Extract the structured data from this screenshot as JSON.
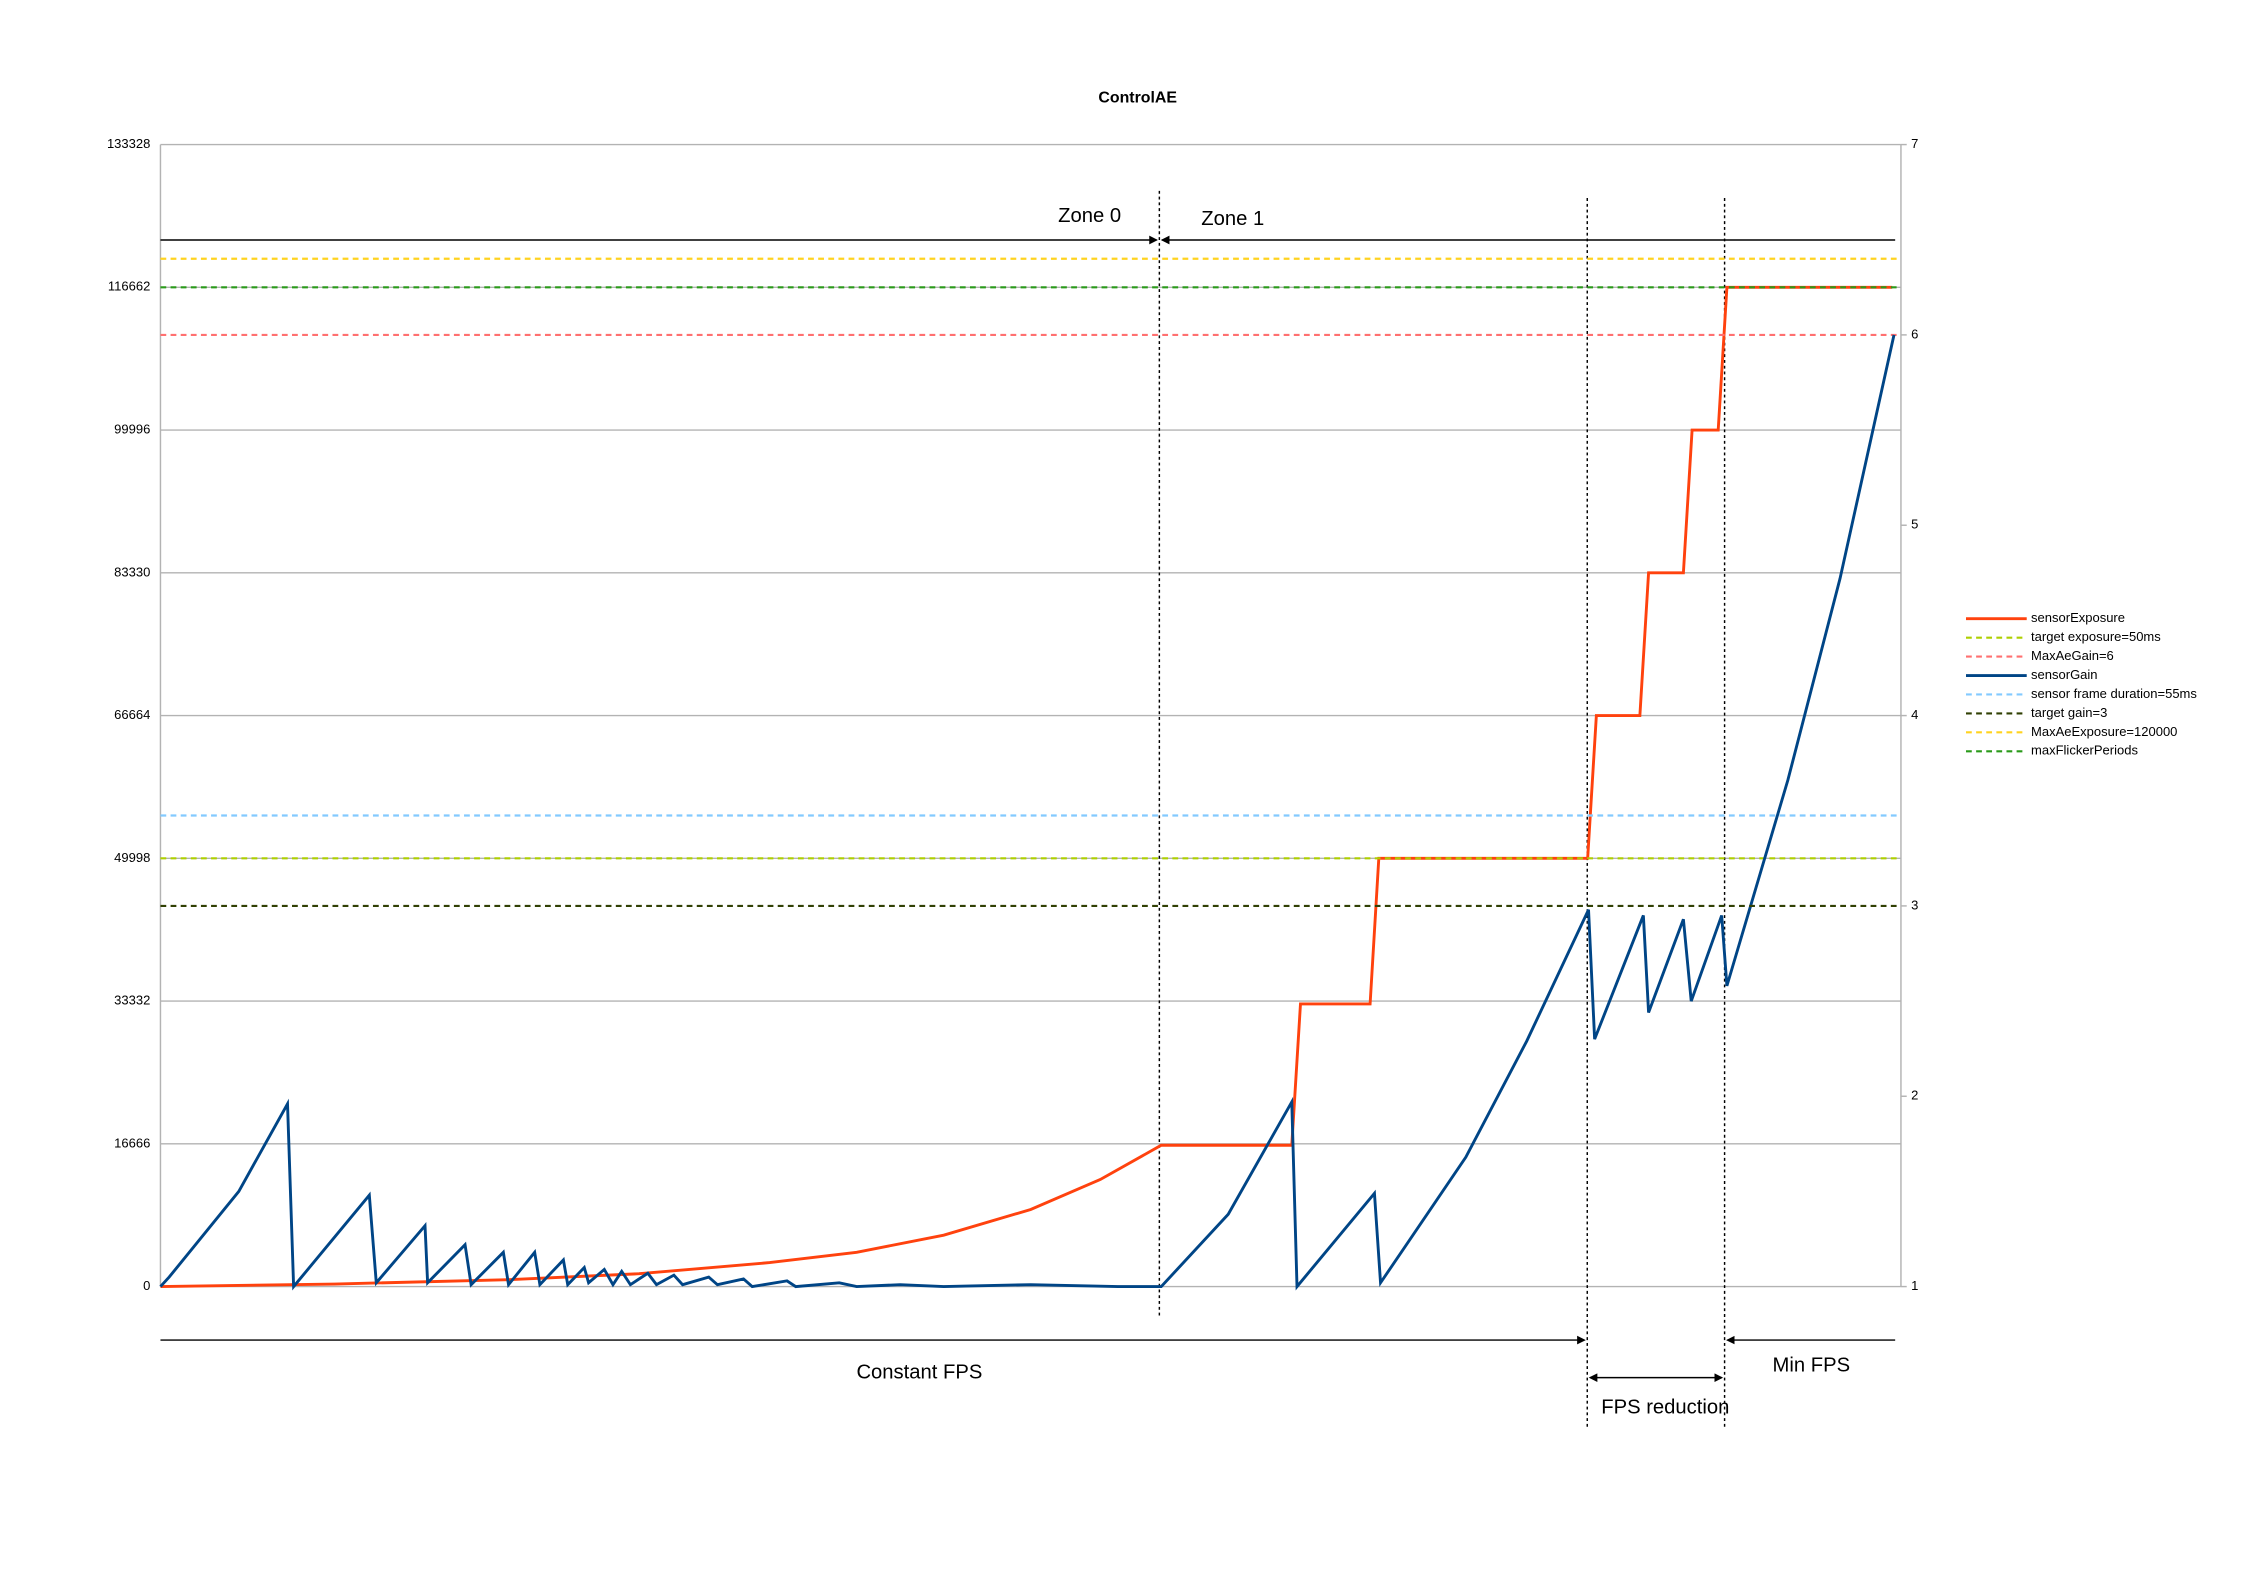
{
  "chart_data": {
    "type": "line",
    "title": "ControlAE",
    "xlim": [
      0,
      200
    ],
    "ylim": [
      0,
      133328
    ],
    "yticks": [
      0,
      16666,
      33332,
      49998,
      66664,
      83330,
      99996,
      116662,
      133328
    ],
    "y2lim": [
      1,
      7
    ],
    "y2ticks": [
      1,
      2,
      3,
      4,
      5,
      6,
      7
    ],
    "grid": true,
    "legend": "right",
    "series": [
      {
        "name": "sensorExposure",
        "color": "#ff420e",
        "x": [
          0,
          20,
          40,
          55,
          70,
          80,
          90,
          100,
          108,
          115,
          130,
          131,
          139,
          140,
          164,
          165,
          170,
          171,
          175,
          176,
          179,
          180,
          199
        ],
        "values": [
          0,
          300,
          800,
          1500,
          2800,
          4000,
          6000,
          9000,
          12500,
          16500,
          16500,
          33000,
          33000,
          50000,
          50000,
          66664,
          66664,
          83330,
          83330,
          99996,
          99996,
          116662,
          116662
        ]
      },
      {
        "name": "target exposure=50ms",
        "color": "#aecf00",
        "value": 49998
      },
      {
        "name": "MaxAeGain=6",
        "color": "#ff7070",
        "value": 6,
        "axis": "y2"
      },
      {
        "name": "sensorGain",
        "color": "#004586",
        "axis": "y2",
        "x": [
          0,
          1,
          9,
          14.6,
          15.3,
          24,
          24.8,
          30.4,
          30.7,
          35,
          35.7,
          39.4,
          40,
          43,
          43.6,
          46.3,
          46.8,
          48.7,
          49.2,
          51,
          52,
          53,
          54,
          56,
          57,
          59,
          60,
          63,
          64,
          67,
          68,
          72,
          73,
          78,
          80,
          85,
          90,
          100,
          110,
          115,
          122.7,
          130,
          130.6,
          139.5,
          140.2,
          150,
          157,
          164.1,
          164.8,
          170.4,
          171,
          175,
          175.9,
          179.4,
          180,
          187,
          193,
          199.2
        ],
        "values": [
          1,
          1.05,
          1.5,
          1.96,
          1,
          1.48,
          1.02,
          1.32,
          1.02,
          1.22,
          1.01,
          1.18,
          1.01,
          1.18,
          1.01,
          1.14,
          1.01,
          1.1,
          1.02,
          1.09,
          1.01,
          1.08,
          1.01,
          1.07,
          1.01,
          1.06,
          1.01,
          1.05,
          1.01,
          1.04,
          1,
          1.03,
          1,
          1.02,
          1,
          1.01,
          1,
          1.01,
          1,
          1,
          1.38,
          1.97,
          1,
          1.49,
          1.02,
          1.68,
          2.29,
          2.98,
          2.3,
          2.95,
          2.44,
          2.93,
          2.5,
          2.95,
          2.58,
          3.66,
          4.72,
          6
        ]
      },
      {
        "name": "sensor frame duration=55ms",
        "color": "#83caff",
        "value": 55000
      },
      {
        "name": "target gain=3",
        "color": "#314004",
        "value": 3,
        "axis": "y2"
      },
      {
        "name": "MaxAeExposure=120000",
        "color": "#ffd320",
        "value": 120000
      },
      {
        "name": "maxFlickerPeriods",
        "color": "#2a9a1a",
        "value": 116662
      }
    ],
    "annotations": [
      "Zone 0",
      "Zone 1",
      "Constant FPS",
      "FPS reduction",
      "Min FPS"
    ]
  }
}
